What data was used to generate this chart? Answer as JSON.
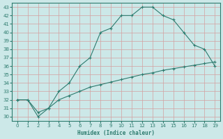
{
  "xlabel": "Humidex (Indice chaleur)",
  "curve1_x": [
    0,
    1,
    2,
    3,
    4,
    5,
    6,
    7,
    8,
    9,
    10,
    11,
    12,
    13,
    14,
    15,
    16,
    17,
    18,
    19
  ],
  "curve1_y": [
    32,
    32,
    30,
    31,
    33,
    34,
    36,
    37,
    40,
    40.5,
    42,
    42,
    43,
    43,
    42,
    41.5,
    40,
    38.5,
    38,
    36
  ],
  "curve2_x": [
    0,
    1,
    2,
    3,
    4,
    5,
    6,
    7,
    8,
    9,
    10,
    11,
    12,
    13,
    14,
    15,
    16,
    17,
    18,
    19
  ],
  "curve2_y": [
    32,
    32,
    30.5,
    31,
    32,
    32.5,
    33,
    33.5,
    33.8,
    34.1,
    34.4,
    34.7,
    35.0,
    35.2,
    35.5,
    35.7,
    35.9,
    36.1,
    36.3,
    36.5
  ],
  "line_color": "#2d7b6e",
  "bg_color": "#cce8e8",
  "grid_color": "#b0d4d4",
  "xlim": [
    -0.5,
    19.5
  ],
  "ylim": [
    29.5,
    43.5
  ],
  "yticks": [
    30,
    31,
    32,
    33,
    34,
    35,
    36,
    37,
    38,
    39,
    40,
    41,
    42,
    43
  ],
  "xticks": [
    0,
    1,
    2,
    3,
    4,
    5,
    6,
    7,
    8,
    9,
    10,
    11,
    12,
    13,
    14,
    15,
    16,
    17,
    18,
    19
  ]
}
